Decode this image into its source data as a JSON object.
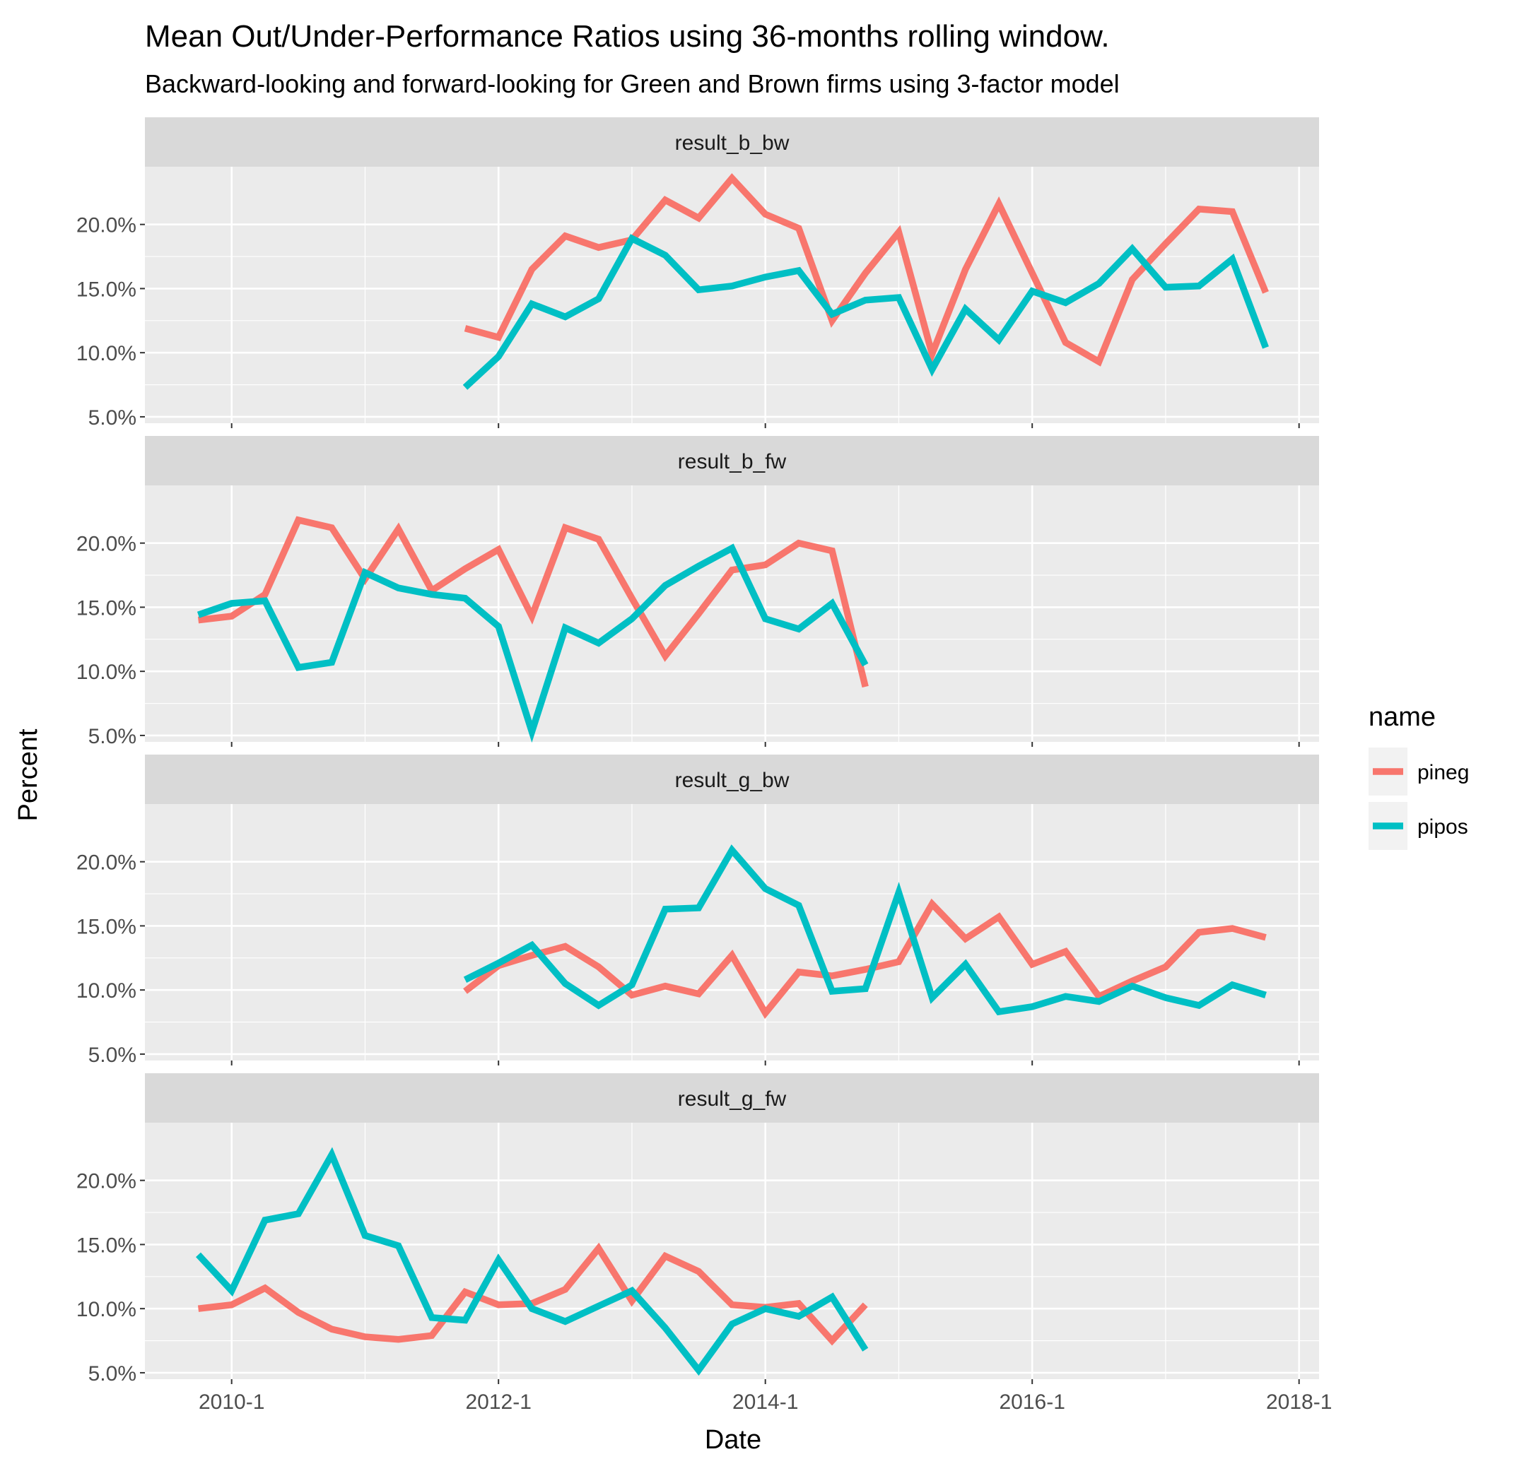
{
  "chart_data": {
    "type": "line",
    "title": "Mean Out/Under-Performance Ratios using 36-months rolling window.",
    "subtitle": "Backward-looking and forward-looking for Green and Brown firms using 3-factor model",
    "xlabel": "Date",
    "ylabel": "Percent",
    "x_ticks": [
      {
        "value": 2010.0,
        "label": "2010-1"
      },
      {
        "value": 2012.0,
        "label": "2012-1"
      },
      {
        "value": 2014.0,
        "label": "2014-1"
      },
      {
        "value": 2016.0,
        "label": "2016-1"
      },
      {
        "value": 2018.0,
        "label": "2018-1"
      }
    ],
    "xlim": [
      2009.35,
      2018.15
    ],
    "y_ticks": [
      {
        "value": 5,
        "label": "5.0%"
      },
      {
        "value": 10,
        "label": "10.0%"
      },
      {
        "value": 15,
        "label": "15.0%"
      },
      {
        "value": 20,
        "label": "20.0%"
      }
    ],
    "ylim": [
      4.5,
      24.5
    ],
    "legend": {
      "title": "name",
      "position": "right",
      "entries": [
        {
          "name": "pineg",
          "color": "#F8766D"
        },
        {
          "name": "pipos",
          "color": "#00BFC4"
        }
      ]
    },
    "panels": [
      {
        "strip": "result_b_bw",
        "series": [
          {
            "name": "pineg",
            "x": [
              2011.75,
              2012.0,
              2012.25,
              2012.5,
              2012.75,
              2013.0,
              2013.25,
              2013.5,
              2013.75,
              2014.0,
              2014.25,
              2014.5,
              2014.75,
              2015.0,
              2015.25,
              2015.5,
              2015.75,
              2016.0,
              2016.25,
              2016.5,
              2016.75,
              2017.0,
              2017.25,
              2017.5,
              2017.75
            ],
            "values": [
              11.9,
              11.2,
              16.5,
              19.1,
              18.2,
              18.8,
              21.9,
              20.5,
              23.6,
              20.8,
              19.7,
              12.5,
              16.2,
              19.4,
              9.9,
              16.5,
              21.6,
              16.2,
              10.8,
              9.3,
              15.7,
              18.5,
              21.2,
              21.0,
              14.7
            ]
          },
          {
            "name": "pipos",
            "x": [
              2011.75,
              2012.0,
              2012.25,
              2012.5,
              2012.75,
              2013.0,
              2013.25,
              2013.5,
              2013.75,
              2014.0,
              2014.25,
              2014.5,
              2014.75,
              2015.0,
              2015.25,
              2015.5,
              2015.75,
              2016.0,
              2016.25,
              2016.5,
              2016.75,
              2017.0,
              2017.25,
              2017.5,
              2017.75
            ],
            "values": [
              7.3,
              9.7,
              13.8,
              12.8,
              14.2,
              18.9,
              17.6,
              14.9,
              15.2,
              15.9,
              16.4,
              13.0,
              14.1,
              14.3,
              8.7,
              13.4,
              11.0,
              14.8,
              13.9,
              15.4,
              18.1,
              15.1,
              15.2,
              17.3,
              10.4
            ]
          }
        ]
      },
      {
        "strip": "result_b_fw",
        "series": [
          {
            "name": "pineg",
            "x": [
              2009.75,
              2010.0,
              2010.25,
              2010.5,
              2010.75,
              2011.0,
              2011.25,
              2011.5,
              2011.75,
              2012.0,
              2012.25,
              2012.5,
              2012.75,
              2013.0,
              2013.25,
              2013.5,
              2013.75,
              2014.0,
              2014.25,
              2014.5,
              2014.75
            ],
            "values": [
              14.0,
              14.3,
              16.0,
              21.8,
              21.2,
              17.2,
              21.1,
              16.3,
              18.0,
              19.5,
              14.3,
              21.2,
              20.3,
              15.7,
              11.2,
              14.5,
              17.9,
              18.3,
              20.0,
              19.4,
              8.8
            ]
          },
          {
            "name": "pipos",
            "x": [
              2009.75,
              2010.0,
              2010.25,
              2010.5,
              2010.75,
              2011.0,
              2011.25,
              2011.5,
              2011.75,
              2012.0,
              2012.25,
              2012.5,
              2012.75,
              2013.0,
              2013.25,
              2013.5,
              2013.75,
              2014.0,
              2014.25,
              2014.5,
              2014.75
            ],
            "values": [
              14.4,
              15.3,
              15.5,
              10.3,
              10.7,
              17.7,
              16.5,
              16.0,
              15.7,
              13.5,
              5.3,
              13.4,
              12.2,
              14.1,
              16.7,
              18.2,
              19.6,
              14.1,
              13.3,
              15.3,
              10.5
            ]
          }
        ]
      },
      {
        "strip": "result_g_bw",
        "series": [
          {
            "name": "pineg",
            "x": [
              2011.75,
              2012.0,
              2012.25,
              2012.5,
              2012.75,
              2013.0,
              2013.25,
              2013.5,
              2013.75,
              2014.0,
              2014.25,
              2014.5,
              2014.75,
              2015.0,
              2015.25,
              2015.5,
              2015.75,
              2016.0,
              2016.25,
              2016.5,
              2016.75,
              2017.0,
              2017.25,
              2017.5,
              2017.75
            ],
            "values": [
              9.9,
              11.9,
              12.7,
              13.4,
              11.8,
              9.6,
              10.3,
              9.7,
              12.7,
              8.2,
              11.4,
              11.1,
              11.6,
              12.2,
              16.7,
              14.0,
              15.7,
              12.0,
              13.0,
              9.5,
              10.7,
              11.8,
              14.5,
              14.8,
              14.1
            ]
          },
          {
            "name": "pipos",
            "x": [
              2011.75,
              2012.0,
              2012.25,
              2012.5,
              2012.75,
              2013.0,
              2013.25,
              2013.5,
              2013.75,
              2014.0,
              2014.25,
              2014.5,
              2014.75,
              2015.0,
              2015.25,
              2015.5,
              2015.75,
              2016.0,
              2016.25,
              2016.5,
              2016.75,
              2017.0,
              2017.25,
              2017.5,
              2017.75
            ],
            "values": [
              10.8,
              12.1,
              13.5,
              10.5,
              8.8,
              10.4,
              16.3,
              16.4,
              20.9,
              17.9,
              16.6,
              9.9,
              10.1,
              17.6,
              9.4,
              12.0,
              8.3,
              8.7,
              9.5,
              9.1,
              10.3,
              9.4,
              8.8,
              10.4,
              9.6
            ]
          }
        ]
      },
      {
        "strip": "result_g_fw",
        "series": [
          {
            "name": "pineg",
            "x": [
              2009.75,
              2010.0,
              2010.25,
              2010.5,
              2010.75,
              2011.0,
              2011.25,
              2011.5,
              2011.75,
              2012.0,
              2012.25,
              2012.5,
              2012.75,
              2013.0,
              2013.25,
              2013.5,
              2013.75,
              2014.0,
              2014.25,
              2014.5,
              2014.75
            ],
            "values": [
              10.0,
              10.3,
              11.6,
              9.7,
              8.4,
              7.8,
              7.6,
              7.9,
              11.3,
              10.3,
              10.4,
              11.5,
              14.7,
              10.6,
              14.1,
              12.9,
              10.3,
              10.1,
              10.4,
              7.5,
              10.3
            ]
          },
          {
            "name": "pipos",
            "x": [
              2009.75,
              2010.0,
              2010.25,
              2010.5,
              2010.75,
              2011.0,
              2011.25,
              2011.5,
              2011.75,
              2012.0,
              2012.25,
              2012.5,
              2012.75,
              2013.0,
              2013.25,
              2013.5,
              2013.75,
              2014.0,
              2014.25,
              2014.5,
              2014.75
            ],
            "values": [
              14.2,
              11.4,
              16.9,
              17.4,
              22.0,
              15.7,
              14.9,
              9.3,
              9.1,
              13.8,
              10.0,
              9.0,
              10.2,
              11.4,
              8.5,
              5.2,
              8.8,
              10.0,
              9.4,
              10.9,
              6.8
            ]
          }
        ]
      }
    ]
  }
}
